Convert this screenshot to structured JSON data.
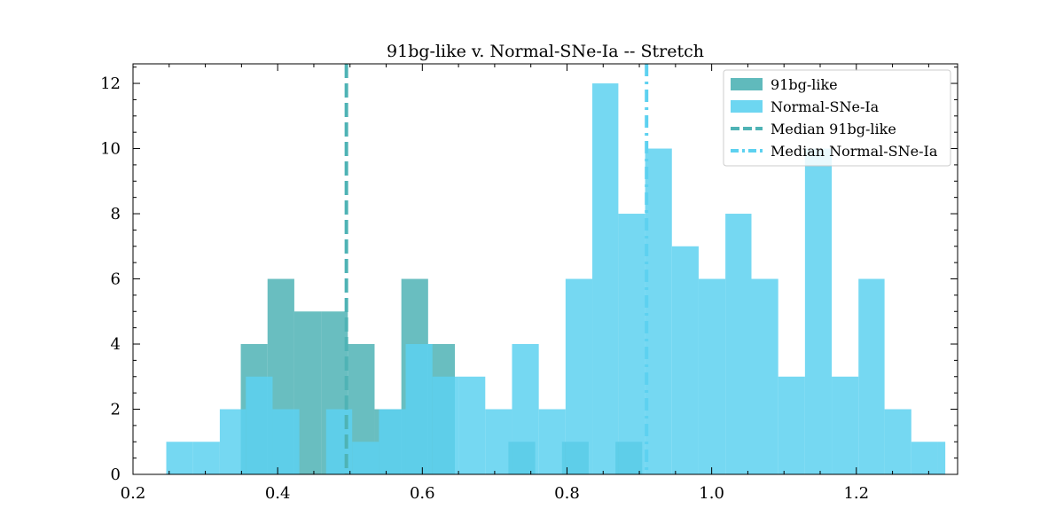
{
  "chart_data": {
    "type": "histogram",
    "title": "91bg-like v. Normal-SNe-Ia -- Stretch",
    "xlabel": "",
    "ylabel": "",
    "xlim": [
      0.2,
      1.34
    ],
    "ylim": [
      0,
      12.6
    ],
    "xticks": [
      0.2,
      0.4,
      0.6,
      0.8,
      1.0,
      1.2
    ],
    "yticks": [
      0,
      2,
      4,
      6,
      8,
      10,
      12
    ],
    "grid": false,
    "legend_position": "top-right",
    "series": [
      {
        "name": "91bg-like",
        "color": "#4fb3b5",
        "bins": [
          {
            "x0": 0.349,
            "x1": 0.386,
            "count": 4
          },
          {
            "x0": 0.386,
            "x1": 0.423,
            "count": 6
          },
          {
            "x0": 0.423,
            "x1": 0.46,
            "count": 5
          },
          {
            "x0": 0.46,
            "x1": 0.497,
            "count": 5
          },
          {
            "x0": 0.497,
            "x1": 0.534,
            "count": 4
          },
          {
            "x0": 0.534,
            "x1": 0.571,
            "count": 2
          },
          {
            "x0": 0.571,
            "x1": 0.608,
            "count": 6
          },
          {
            "x0": 0.608,
            "x1": 0.645,
            "count": 4
          },
          {
            "x0": 0.719,
            "x1": 0.756,
            "count": 1
          },
          {
            "x0": 0.793,
            "x1": 0.83,
            "count": 1
          },
          {
            "x0": 0.867,
            "x1": 0.904,
            "count": 1
          }
        ]
      },
      {
        "name": "Normal-SNe-Ia",
        "color": "#5dd1f0",
        "bins": [
          {
            "x0": 0.246,
            "x1": 0.283,
            "count": 1
          },
          {
            "x0": 0.283,
            "x1": 0.32,
            "count": 1
          },
          {
            "x0": 0.32,
            "x1": 0.356,
            "count": 2
          },
          {
            "x0": 0.356,
            "x1": 0.393,
            "count": 3
          },
          {
            "x0": 0.393,
            "x1": 0.43,
            "count": 2
          },
          {
            "x0": 0.43,
            "x1": 0.467,
            "count": 0
          },
          {
            "x0": 0.467,
            "x1": 0.503,
            "count": 2
          },
          {
            "x0": 0.503,
            "x1": 0.54,
            "count": 1
          },
          {
            "x0": 0.54,
            "x1": 0.577,
            "count": 2
          },
          {
            "x0": 0.577,
            "x1": 0.614,
            "count": 4
          },
          {
            "x0": 0.614,
            "x1": 0.651,
            "count": 3
          },
          {
            "x0": 0.651,
            "x1": 0.687,
            "count": 3
          },
          {
            "x0": 0.687,
            "x1": 0.724,
            "count": 2
          },
          {
            "x0": 0.724,
            "x1": 0.761,
            "count": 4
          },
          {
            "x0": 0.761,
            "x1": 0.798,
            "count": 2
          },
          {
            "x0": 0.798,
            "x1": 0.835,
            "count": 6
          },
          {
            "x0": 0.835,
            "x1": 0.871,
            "count": 12
          },
          {
            "x0": 0.871,
            "x1": 0.908,
            "count": 8
          },
          {
            "x0": 0.908,
            "x1": 0.945,
            "count": 10
          },
          {
            "x0": 0.945,
            "x1": 0.982,
            "count": 7
          },
          {
            "x0": 0.982,
            "x1": 1.019,
            "count": 6
          },
          {
            "x0": 1.019,
            "x1": 1.055,
            "count": 8
          },
          {
            "x0": 1.055,
            "x1": 1.092,
            "count": 6
          },
          {
            "x0": 1.092,
            "x1": 1.129,
            "count": 3
          },
          {
            "x0": 1.129,
            "x1": 1.166,
            "count": 10
          },
          {
            "x0": 1.166,
            "x1": 1.203,
            "count": 3
          },
          {
            "x0": 1.203,
            "x1": 1.239,
            "count": 6
          },
          {
            "x0": 1.239,
            "x1": 1.276,
            "count": 2
          },
          {
            "x0": 1.276,
            "x1": 1.313,
            "count": 1
          },
          {
            "x0": 1.313,
            "x1": 1.323,
            "count": 1
          }
        ]
      }
    ],
    "medians": [
      {
        "name": "Median 91bg-like",
        "x": 0.495,
        "color": "#4fb3b5",
        "style": "dashed"
      },
      {
        "name": "Median Normal-SNe-Ia",
        "x": 0.91,
        "color": "#5dd1f0",
        "style": "dashdot"
      }
    ]
  }
}
